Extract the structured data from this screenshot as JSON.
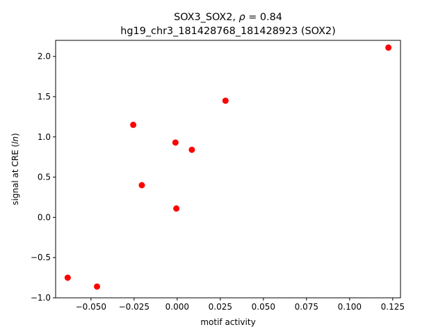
{
  "chart_data": {
    "type": "scatter",
    "title_line1_prefix": "SOX3_SOX2, ",
    "title_line1_symbol": "ρ",
    "title_line1_suffix": " = 0.84",
    "title_line2": "hg19_chr3_181428768_181428923 (SOX2)",
    "xlabel": "motif activity",
    "ylabel_prefix": "signal at CRE (",
    "ylabel_italic": "ln",
    "ylabel_suffix": ")",
    "xlim": [
      -0.0705,
      0.1295
    ],
    "ylim": [
      -1.0,
      2.2
    ],
    "xticks": [
      -0.05,
      -0.025,
      0.0,
      0.025,
      0.05,
      0.075,
      0.1,
      0.125
    ],
    "xtick_labels": [
      "−0.050",
      "−0.025",
      "0.000",
      "0.025",
      "0.050",
      "0.075",
      "0.100",
      "0.125"
    ],
    "yticks": [
      -1.0,
      -0.5,
      0.0,
      0.5,
      1.0,
      1.5,
      2.0
    ],
    "ytick_labels": [
      "−1.0",
      "−0.5",
      "0.0",
      "0.5",
      "1.0",
      "1.5",
      "2.0"
    ],
    "marker_color": "#ff0000",
    "grid": false,
    "points": [
      {
        "x": -0.0635,
        "y": -0.75
      },
      {
        "x": -0.0465,
        "y": -0.86
      },
      {
        "x": -0.0255,
        "y": 1.15
      },
      {
        "x": -0.0205,
        "y": 0.4
      },
      {
        "x": -0.001,
        "y": 0.93
      },
      {
        "x": -0.0005,
        "y": 0.11
      },
      {
        "x": 0.0085,
        "y": 0.84
      },
      {
        "x": 0.028,
        "y": 1.45
      },
      {
        "x": 0.1225,
        "y": 2.11
      }
    ]
  }
}
